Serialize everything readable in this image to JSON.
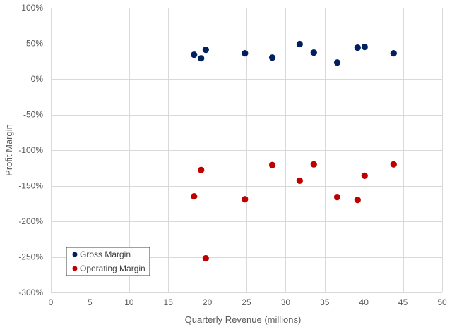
{
  "chart_data": {
    "type": "scatter",
    "title": "",
    "xlabel": "Quarterly Revenue (millions)",
    "ylabel": "Profit Margin",
    "xlim": [
      0,
      50
    ],
    "ylim": [
      -300,
      100
    ],
    "x_ticks": [
      0,
      5,
      10,
      15,
      20,
      25,
      30,
      35,
      40,
      45,
      50
    ],
    "y_ticks": [
      100,
      50,
      0,
      -50,
      -100,
      -150,
      -200,
      -250,
      -300
    ],
    "y_tick_labels": [
      "100%",
      "50%",
      "0%",
      "-50%",
      "-100%",
      "-150%",
      "-200%",
      "-250%",
      "-300%"
    ],
    "grid": true,
    "legend_position": "bottom-left",
    "series": [
      {
        "name": "Gross Margin",
        "color": "#002060",
        "points": [
          {
            "x": 18.3,
            "y": 34
          },
          {
            "x": 19.2,
            "y": 29
          },
          {
            "x": 19.8,
            "y": 41
          },
          {
            "x": 24.8,
            "y": 36
          },
          {
            "x": 28.3,
            "y": 30
          },
          {
            "x": 31.8,
            "y": 49
          },
          {
            "x": 33.6,
            "y": 37
          },
          {
            "x": 36.6,
            "y": 23
          },
          {
            "x": 39.2,
            "y": 44
          },
          {
            "x": 40.1,
            "y": 45
          },
          {
            "x": 43.8,
            "y": 36
          }
        ]
      },
      {
        "name": "Operating Margin",
        "color": "#c00000",
        "points": [
          {
            "x": 18.3,
            "y": -165
          },
          {
            "x": 19.2,
            "y": -128
          },
          {
            "x": 19.8,
            "y": -252
          },
          {
            "x": 24.8,
            "y": -169
          },
          {
            "x": 28.3,
            "y": -121
          },
          {
            "x": 31.8,
            "y": -143
          },
          {
            "x": 33.6,
            "y": -120
          },
          {
            "x": 36.6,
            "y": -166
          },
          {
            "x": 39.2,
            "y": -170
          },
          {
            "x": 40.1,
            "y": -136
          },
          {
            "x": 43.8,
            "y": -120
          }
        ]
      }
    ]
  }
}
